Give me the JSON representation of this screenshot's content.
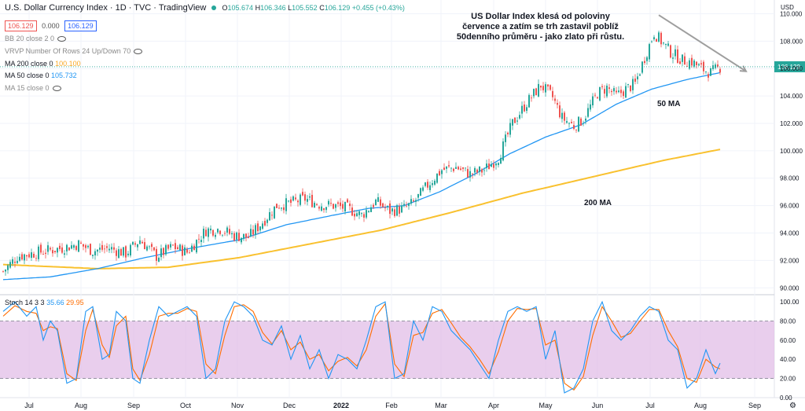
{
  "header": {
    "title": "U.S. Dollar Currency Index · 1D · TVC · TradingView",
    "ohlc": {
      "o_label": "O",
      "o": "105.674",
      "h_label": "H",
      "h": "106.346",
      "l_label": "L",
      "l": "105.552",
      "c_label": "C",
      "c": "106.129",
      "chg": "+0.455 (+0.43%)"
    },
    "price_box_1": "106.129",
    "spread": "0.000",
    "price_box_2": "106.129",
    "currency": "USD"
  },
  "indicators": [
    {
      "label": "BB 20 close 2 0",
      "value": ""
    },
    {
      "label": "VRVP Number Of Rows 24 Up/Down 70",
      "value": ""
    },
    {
      "label": "MA 200 close 0",
      "value": "100.100",
      "color": "#f9c12f"
    },
    {
      "label": "MA 50 close 0",
      "value": "105.732",
      "color": "#2196f3"
    },
    {
      "label": "MA 15 close 0",
      "value": ""
    }
  ],
  "annotation": "US Dollar Index klesá od poloviny července a zatím se trh zastavil poblíž 50denního průměru - jako zlato při růstu.",
  "ma_labels": {
    "ma50": "50 MA",
    "ma200": "200 MA"
  },
  "last_price_label": "106.129",
  "stoch_legend": {
    "label": "Stoch 14 3 3",
    "k": "35.66",
    "d": "29.95"
  },
  "colors": {
    "up": "#26a69a",
    "down": "#ef5350",
    "ma50": "#2196f3",
    "ma200": "#f9c12f",
    "stoch_k": "#2196f3",
    "stoch_d": "#ff6d00",
    "stoch_band": "#e1bee7",
    "trend": "#9e9e9e"
  },
  "chart_data": {
    "type": "candlestick",
    "x_ticks": [
      "Jul",
      "Aug",
      "Sep",
      "Oct",
      "Nov",
      "Dec",
      "2022",
      "Feb",
      "Mar",
      "Apr",
      "May",
      "Jun",
      "Jul",
      "Aug",
      "Sep"
    ],
    "y_ticks": [
      "110.000",
      "108.000",
      "106.000",
      "104.000",
      "102.000",
      "100.000",
      "98.000",
      "96.000",
      "94.000",
      "92.000",
      "90.000"
    ],
    "ylim": [
      89.5,
      111.0
    ],
    "close_anchors": [
      [
        0,
        91.2
      ],
      [
        6,
        92.3
      ],
      [
        15,
        92.6
      ],
      [
        25,
        92.9
      ],
      [
        32,
        93.2
      ],
      [
        38,
        92.7
      ],
      [
        45,
        92.9
      ],
      [
        52,
        92.5
      ],
      [
        58,
        93.5
      ],
      [
        65,
        92.3
      ],
      [
        72,
        93.0
      ],
      [
        78,
        92.6
      ],
      [
        86,
        94.2
      ],
      [
        92,
        94.3
      ],
      [
        98,
        93.8
      ],
      [
        104,
        93.7
      ],
      [
        110,
        94.8
      ],
      [
        116,
        96.0
      ],
      [
        122,
        96.2
      ],
      [
        128,
        96.5
      ],
      [
        134,
        96.1
      ],
      [
        140,
        96.0
      ],
      [
        146,
        95.8
      ],
      [
        152,
        95.3
      ],
      [
        158,
        96.3
      ],
      [
        164,
        95.6
      ],
      [
        170,
        95.8
      ],
      [
        174,
        96.2
      ],
      [
        180,
        97.5
      ],
      [
        186,
        98.6
      ],
      [
        192,
        98.8
      ],
      [
        198,
        98.3
      ],
      [
        204,
        98.6
      ],
      [
        210,
        99.5
      ],
      [
        216,
        102.0
      ],
      [
        222,
        103.5
      ],
      [
        228,
        104.8
      ],
      [
        233,
        103.9
      ],
      [
        237,
        102.4
      ],
      [
        242,
        101.8
      ],
      [
        246,
        102.3
      ],
      [
        252,
        104.2
      ],
      [
        256,
        104.6
      ],
      [
        260,
        104.0
      ],
      [
        264,
        104.5
      ],
      [
        268,
        104.9
      ],
      [
        272,
        106.8
      ],
      [
        276,
        108.6
      ],
      [
        279,
        108.0
      ],
      [
        283,
        107.2
      ],
      [
        288,
        106.6
      ],
      [
        292,
        106.5
      ],
      [
        296,
        106.0
      ],
      [
        300,
        105.7
      ],
      [
        304,
        106.1
      ]
    ],
    "ma50_anchors": [
      [
        0,
        90.6
      ],
      [
        20,
        90.8
      ],
      [
        40,
        91.4
      ],
      [
        60,
        92.2
      ],
      [
        80,
        92.9
      ],
      [
        100,
        93.5
      ],
      [
        120,
        94.6
      ],
      [
        140,
        95.3
      ],
      [
        155,
        95.8
      ],
      [
        170,
        96.0
      ],
      [
        185,
        97.0
      ],
      [
        200,
        98.3
      ],
      [
        215,
        99.8
      ],
      [
        230,
        101.0
      ],
      [
        245,
        101.9
      ],
      [
        260,
        103.4
      ],
      [
        275,
        104.5
      ],
      [
        290,
        105.2
      ],
      [
        304,
        105.7
      ]
    ],
    "ma200_anchors": [
      [
        0,
        91.7
      ],
      [
        40,
        91.4
      ],
      [
        70,
        91.5
      ],
      [
        100,
        92.2
      ],
      [
        130,
        93.2
      ],
      [
        160,
        94.2
      ],
      [
        190,
        95.5
      ],
      [
        220,
        96.9
      ],
      [
        250,
        98.1
      ],
      [
        280,
        99.3
      ],
      [
        304,
        100.1
      ]
    ],
    "trendline": {
      "start": [
        278,
        109.9
      ],
      "end": [
        315,
        105.8
      ]
    },
    "stochastic": {
      "ylim": [
        0,
        105
      ],
      "y_ticks": [
        "100.00",
        "80.00",
        "60.00",
        "40.00",
        "20.00",
        "0.00"
      ],
      "band": [
        20,
        80
      ],
      "k_anchors": [
        [
          0,
          90
        ],
        [
          5,
          100
        ],
        [
          10,
          85
        ],
        [
          14,
          95
        ],
        [
          17,
          60
        ],
        [
          20,
          80
        ],
        [
          23,
          70
        ],
        [
          27,
          15
        ],
        [
          31,
          20
        ],
        [
          35,
          90
        ],
        [
          38,
          95
        ],
        [
          42,
          40
        ],
        [
          45,
          45
        ],
        [
          48,
          90
        ],
        [
          52,
          80
        ],
        [
          55,
          20
        ],
        [
          58,
          15
        ],
        [
          62,
          60
        ],
        [
          66,
          95
        ],
        [
          70,
          85
        ],
        [
          74,
          90
        ],
        [
          78,
          95
        ],
        [
          82,
          85
        ],
        [
          86,
          20
        ],
        [
          90,
          30
        ],
        [
          94,
          80
        ],
        [
          98,
          100
        ],
        [
          102,
          95
        ],
        [
          106,
          85
        ],
        [
          110,
          60
        ],
        [
          114,
          55
        ],
        [
          118,
          75
        ],
        [
          122,
          40
        ],
        [
          126,
          65
        ],
        [
          130,
          30
        ],
        [
          134,
          50
        ],
        [
          138,
          20
        ],
        [
          142,
          45
        ],
        [
          146,
          40
        ],
        [
          150,
          30
        ],
        [
          154,
          60
        ],
        [
          158,
          95
        ],
        [
          162,
          100
        ],
        [
          166,
          20
        ],
        [
          170,
          25
        ],
        [
          174,
          80
        ],
        [
          178,
          60
        ],
        [
          182,
          95
        ],
        [
          186,
          90
        ],
        [
          190,
          70
        ],
        [
          194,
          60
        ],
        [
          198,
          50
        ],
        [
          202,
          35
        ],
        [
          206,
          20
        ],
        [
          210,
          60
        ],
        [
          214,
          90
        ],
        [
          218,
          95
        ],
        [
          222,
          90
        ],
        [
          226,
          95
        ],
        [
          230,
          40
        ],
        [
          234,
          70
        ],
        [
          238,
          5
        ],
        [
          242,
          10
        ],
        [
          246,
          30
        ],
        [
          250,
          80
        ],
        [
          254,
          100
        ],
        [
          258,
          70
        ],
        [
          262,
          60
        ],
        [
          266,
          70
        ],
        [
          270,
          85
        ],
        [
          274,
          95
        ],
        [
          278,
          90
        ],
        [
          282,
          60
        ],
        [
          286,
          50
        ],
        [
          290,
          10
        ],
        [
          294,
          20
        ],
        [
          298,
          50
        ],
        [
          302,
          25
        ],
        [
          304,
          36
        ]
      ],
      "d_anchors": [
        [
          0,
          85
        ],
        [
          5,
          96
        ],
        [
          10,
          90
        ],
        [
          14,
          88
        ],
        [
          17,
          70
        ],
        [
          20,
          74
        ],
        [
          23,
          72
        ],
        [
          27,
          25
        ],
        [
          31,
          18
        ],
        [
          35,
          70
        ],
        [
          38,
          92
        ],
        [
          42,
          55
        ],
        [
          45,
          42
        ],
        [
          48,
          75
        ],
        [
          52,
          85
        ],
        [
          55,
          30
        ],
        [
          58,
          18
        ],
        [
          62,
          45
        ],
        [
          66,
          85
        ],
        [
          70,
          88
        ],
        [
          74,
          88
        ],
        [
          78,
          93
        ],
        [
          82,
          90
        ],
        [
          86,
          35
        ],
        [
          90,
          25
        ],
        [
          94,
          65
        ],
        [
          98,
          95
        ],
        [
          102,
          97
        ],
        [
          106,
          90
        ],
        [
          110,
          68
        ],
        [
          114,
          56
        ],
        [
          118,
          70
        ],
        [
          122,
          50
        ],
        [
          126,
          58
        ],
        [
          130,
          40
        ],
        [
          134,
          45
        ],
        [
          138,
          28
        ],
        [
          142,
          38
        ],
        [
          146,
          42
        ],
        [
          150,
          33
        ],
        [
          154,
          50
        ],
        [
          158,
          85
        ],
        [
          162,
          98
        ],
        [
          166,
          35
        ],
        [
          170,
          22
        ],
        [
          174,
          65
        ],
        [
          178,
          68
        ],
        [
          182,
          88
        ],
        [
          186,
          92
        ],
        [
          190,
          78
        ],
        [
          194,
          63
        ],
        [
          198,
          53
        ],
        [
          202,
          40
        ],
        [
          206,
          25
        ],
        [
          210,
          48
        ],
        [
          214,
          80
        ],
        [
          218,
          93
        ],
        [
          222,
          92
        ],
        [
          226,
          93
        ],
        [
          230,
          55
        ],
        [
          234,
          60
        ],
        [
          238,
          15
        ],
        [
          242,
          8
        ],
        [
          246,
          22
        ],
        [
          250,
          65
        ],
        [
          254,
          95
        ],
        [
          258,
          80
        ],
        [
          262,
          63
        ],
        [
          266,
          67
        ],
        [
          270,
          80
        ],
        [
          274,
          92
        ],
        [
          278,
          92
        ],
        [
          282,
          70
        ],
        [
          286,
          53
        ],
        [
          290,
          20
        ],
        [
          294,
          16
        ],
        [
          298,
          40
        ],
        [
          302,
          32
        ],
        [
          304,
          30
        ]
      ]
    }
  }
}
